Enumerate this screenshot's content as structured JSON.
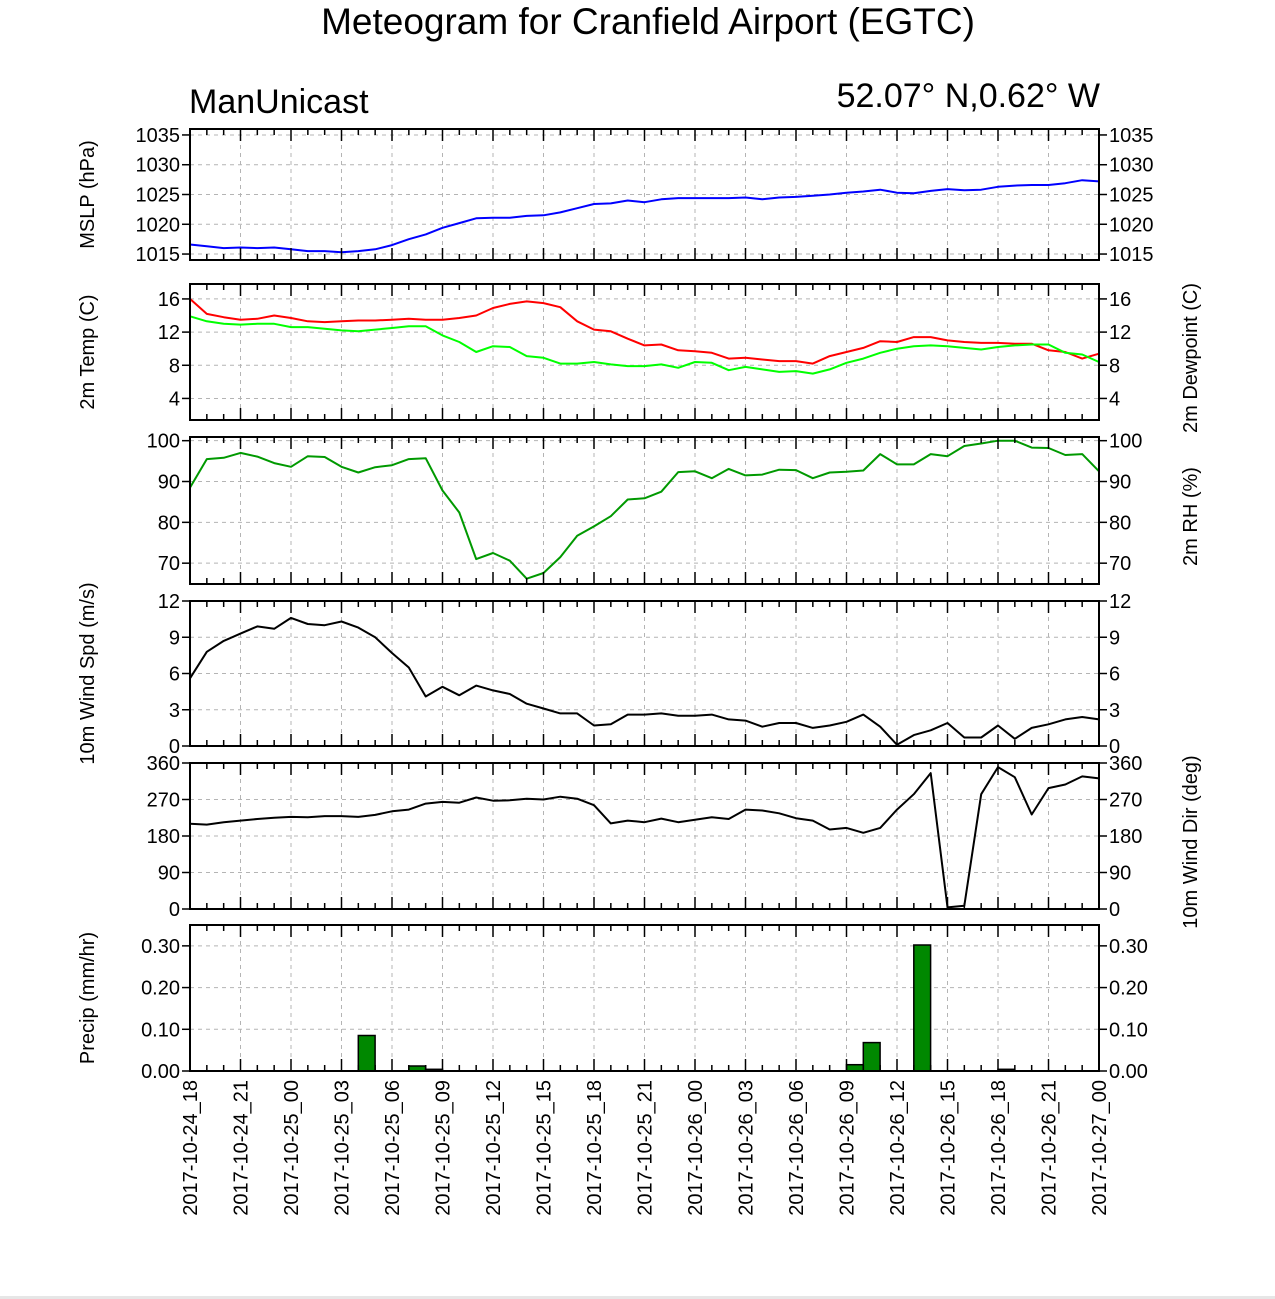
{
  "title": "Meteogram for Cranfield Airport (EGTC)",
  "model": "ManUnicast",
  "location": "52.07° N,0.62° W",
  "colors": {
    "mslp": "#0000ff",
    "temp": "#ff0000",
    "dewpoint": "#00ff00",
    "rh": "#009900",
    "wind": "#000000",
    "precip_bar": "#008800",
    "grid": "#b4b4b4"
  },
  "chart_data": {
    "type": "line",
    "x_tick_labels": [
      "2017-10-24_18",
      "2017-10-24_21",
      "2017-10-25_00",
      "2017-10-25_03",
      "2017-10-25_06",
      "2017-10-25_09",
      "2017-10-25_12",
      "2017-10-25_15",
      "2017-10-25_18",
      "2017-10-25_21",
      "2017-10-26_00",
      "2017-10-26_03",
      "2017-10-26_06",
      "2017-10-26_09",
      "2017-10-26_12",
      "2017-10-26_15",
      "2017-10-26_18",
      "2017-10-26_21",
      "2017-10-27_00"
    ],
    "x_start": "2017-10-24_18",
    "x_step_hours": 1,
    "panels": [
      {
        "id": "mslp",
        "type": "line",
        "ylabel_left": "MSLP (hPa)",
        "ylabel_right": "",
        "ylim": [
          1014,
          1036
        ],
        "yticks": [
          1015,
          1020,
          1025,
          1030,
          1035
        ],
        "ytick_labels": [
          "1015",
          "1020",
          "1025",
          "1030",
          "1035"
        ],
        "series": [
          {
            "color_key": "mslp",
            "values": [
              1016.6,
              1016.3,
              1016.0,
              1016.1,
              1016.0,
              1016.1,
              1015.8,
              1015.5,
              1015.5,
              1015.3,
              1015.5,
              1015.8,
              1016.5,
              1017.5,
              1018.3,
              1019.4,
              1020.2,
              1021.0,
              1021.1,
              1021.1,
              1021.4,
              1021.5,
              1022.0,
              1022.7,
              1023.4,
              1023.5,
              1024.0,
              1023.7,
              1024.2,
              1024.4,
              1024.4,
              1024.4,
              1024.4,
              1024.5,
              1024.2,
              1024.5,
              1024.6,
              1024.8,
              1025.0,
              1025.3,
              1025.5,
              1025.8,
              1025.3,
              1025.2,
              1025.6,
              1025.9,
              1025.7,
              1025.8,
              1026.3,
              1026.5,
              1026.6,
              1026.6,
              1026.9,
              1027.4,
              1027.2
            ]
          }
        ]
      },
      {
        "id": "temp",
        "type": "line",
        "ylabel_left": "2m Temp (C)",
        "ylabel_right": "2m Dewpoint (C)",
        "ylim": [
          1.4,
          17.8
        ],
        "yticks": [
          4,
          8,
          12,
          16
        ],
        "ytick_labels": [
          "4",
          "8",
          "12",
          "16"
        ],
        "series": [
          {
            "color_key": "temp",
            "values": [
              16.0,
              14.2,
              13.8,
              13.5,
              13.6,
              14.0,
              13.7,
              13.3,
              13.2,
              13.3,
              13.4,
              13.4,
              13.5,
              13.6,
              13.5,
              13.5,
              13.7,
              14.0,
              14.9,
              15.4,
              15.7,
              15.5,
              15.0,
              13.3,
              12.3,
              12.1,
              11.2,
              10.4,
              10.5,
              9.8,
              9.7,
              9.5,
              8.8,
              8.9,
              8.7,
              8.5,
              8.5,
              8.2,
              9.1,
              9.6,
              10.1,
              10.9,
              10.8,
              11.4,
              11.4,
              11.0,
              10.8,
              10.7,
              10.7,
              10.6,
              10.6,
              9.8,
              9.6,
              8.8,
              9.4
            ]
          },
          {
            "color_key": "dewpoint",
            "values": [
              13.9,
              13.3,
              13.0,
              12.9,
              13.0,
              13.0,
              12.6,
              12.6,
              12.4,
              12.2,
              12.1,
              12.3,
              12.5,
              12.7,
              12.7,
              11.6,
              10.8,
              9.6,
              10.3,
              10.2,
              9.1,
              8.9,
              8.2,
              8.2,
              8.4,
              8.1,
              7.9,
              7.9,
              8.1,
              7.7,
              8.4,
              8.3,
              7.4,
              7.8,
              7.5,
              7.2,
              7.3,
              7.0,
              7.5,
              8.3,
              8.8,
              9.5,
              10.0,
              10.3,
              10.4,
              10.3,
              10.1,
              9.9,
              10.2,
              10.4,
              10.5,
              10.5,
              9.5,
              9.3,
              8.4
            ]
          }
        ]
      },
      {
        "id": "rh",
        "type": "line",
        "ylabel_left": "",
        "ylabel_right": "2m RH (%)",
        "ylim": [
          64.9,
          100.9
        ],
        "yticks": [
          70,
          80,
          90,
          100
        ],
        "ytick_labels": [
          "70",
          "80",
          "90",
          "100"
        ],
        "series": [
          {
            "color_key": "rh",
            "values": [
              88.5,
              95.5,
              95.8,
              97.0,
              96.1,
              94.5,
              93.6,
              96.2,
              96.0,
              93.6,
              92.2,
              93.5,
              94.0,
              95.5,
              95.7,
              87.8,
              82.4,
              71.0,
              72.5,
              70.6,
              66.2,
              67.6,
              71.5,
              76.7,
              79.0,
              81.5,
              85.6,
              85.9,
              87.5,
              92.3,
              92.5,
              90.8,
              93.1,
              91.5,
              91.7,
              92.9,
              92.8,
              90.8,
              92.2,
              92.4,
              92.7,
              96.7,
              94.2,
              94.2,
              96.7,
              96.2,
              98.7,
              99.3,
              100.0,
              100.0,
              98.3,
              98.2,
              96.5,
              96.7,
              92.5
            ]
          }
        ]
      },
      {
        "id": "wspd",
        "type": "line",
        "ylabel_left": "10m Wind Spd (m/s)",
        "ylabel_right": "",
        "ylim": [
          0,
          12
        ],
        "yticks": [
          0,
          3,
          6,
          9,
          12
        ],
        "ytick_labels": [
          "0",
          "3",
          "6",
          "9",
          "12"
        ],
        "series": [
          {
            "color_key": "wind",
            "values": [
              5.6,
              7.8,
              8.7,
              9.3,
              9.9,
              9.7,
              10.6,
              10.1,
              10.0,
              10.3,
              9.8,
              9.0,
              7.7,
              6.5,
              4.1,
              4.9,
              4.2,
              5.0,
              4.6,
              4.3,
              3.5,
              3.1,
              2.7,
              2.7,
              1.7,
              1.8,
              2.6,
              2.6,
              2.7,
              2.5,
              2.5,
              2.6,
              2.2,
              2.1,
              1.6,
              1.9,
              1.9,
              1.5,
              1.7,
              2.0,
              2.6,
              1.6,
              0.1,
              0.9,
              1.3,
              1.9,
              0.7,
              0.7,
              1.7,
              0.6,
              1.5,
              1.8,
              2.2,
              2.4,
              2.2
            ]
          }
        ]
      },
      {
        "id": "wdir",
        "type": "line",
        "ylabel_left": "",
        "ylabel_right": "10m Wind Dir (deg)",
        "ylim": [
          0,
          360
        ],
        "yticks": [
          0,
          90,
          180,
          270,
          360
        ],
        "ytick_labels": [
          "0",
          "90",
          "180",
          "270",
          "360"
        ],
        "series": [
          {
            "color_key": "wind",
            "values": [
              210,
              208,
              214,
              218,
              222,
              225,
              227,
              226,
              229,
              229,
              227,
              232,
              241,
              245,
              260,
              264,
              262,
              275,
              267,
              268,
              272,
              270,
              277,
              272,
              256,
              211,
              218,
              214,
              223,
              214,
              220,
              226,
              222,
              245,
              243,
              236,
              224,
              218,
              196,
              200,
              188,
              200,
              245,
              283,
              335,
              4,
              8,
              283,
              350,
              325,
              233,
              298,
              307,
              327,
              322
            ]
          }
        ]
      },
      {
        "id": "precip",
        "type": "bar",
        "ylabel_left": "Precip (mm/hr)",
        "ylabel_right": "",
        "ylim": [
          0,
          0.35
        ],
        "yticks": [
          0.0,
          0.1,
          0.2,
          0.3
        ],
        "ytick_labels": [
          "0.00",
          "0.10",
          "0.20",
          "0.30"
        ],
        "bars": [
          {
            "hour": 10,
            "value": 0.085
          },
          {
            "hour": 13,
            "value": 0.012
          },
          {
            "hour": 14,
            "value": 0.004
          },
          {
            "hour": 39,
            "value": 0.015
          },
          {
            "hour": 40,
            "value": 0.068
          },
          {
            "hour": 43,
            "value": 0.302
          },
          {
            "hour": 48,
            "value": 0.004
          }
        ]
      }
    ]
  }
}
